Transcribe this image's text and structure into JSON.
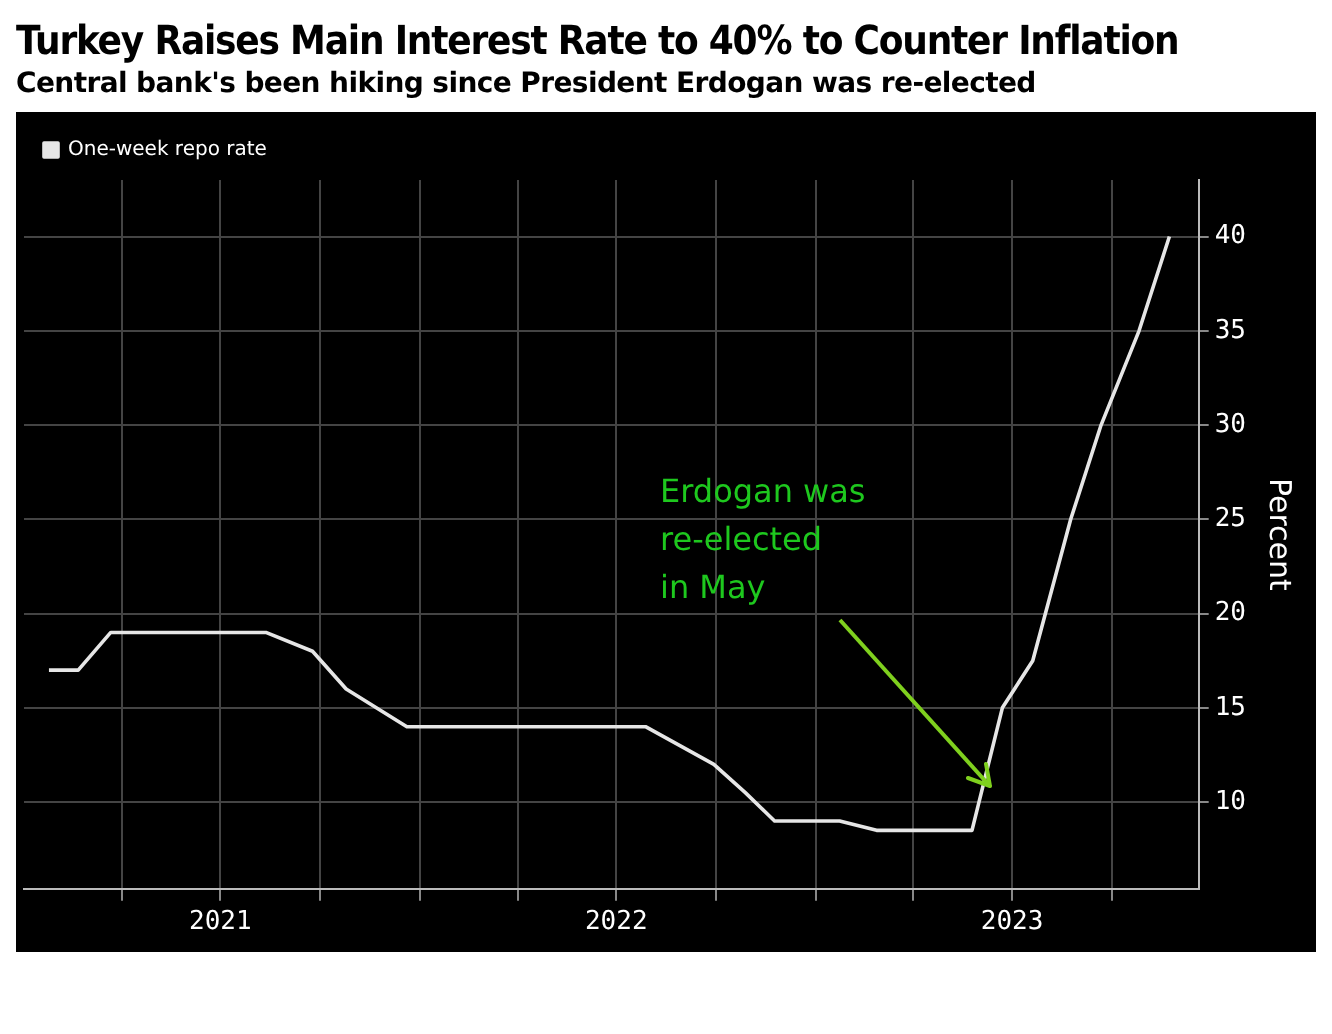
{
  "chart_data": {
    "type": "line",
    "title": "Turkey Raises Main Interest Rate to 40% to Counter Inflation",
    "subtitle": "Central bank's been hiking since President Erdogan was re-elected",
    "ylabel": "Percent",
    "x": [
      "2021-01-24",
      "2021-02-20",
      "2021-03-22",
      "2021-08-12",
      "2021-09-24",
      "2021-10-25",
      "2021-12-20",
      "2022-07-28",
      "2022-09-29",
      "2022-10-28",
      "2022-11-24",
      "2023-01-23",
      "2023-02-26",
      "2023-05-25",
      "2023-06-22",
      "2023-07-20",
      "2023-08-24",
      "2023-09-21",
      "2023-10-26",
      "2023-11-23"
    ],
    "series": [
      {
        "name": "One-week repo rate",
        "color": "#e6e6e6",
        "values": [
          17,
          17,
          19,
          19,
          18,
          16,
          14,
          14,
          12,
          10.5,
          9,
          9,
          8.5,
          8.5,
          15,
          17.5,
          25,
          30,
          35,
          40
        ]
      }
    ],
    "xlim": [
      "2021-01-01",
      "2023-12-20"
    ],
    "xticks": [
      {
        "value": "2021-04-01",
        "label": null
      },
      {
        "value": "2021-07-01",
        "label": "2021"
      },
      {
        "value": "2021-10-01",
        "label": null
      },
      {
        "value": "2022-01-01",
        "label": null
      },
      {
        "value": "2022-04-01",
        "label": null
      },
      {
        "value": "2022-07-01",
        "label": "2022"
      },
      {
        "value": "2022-10-01",
        "label": null
      },
      {
        "value": "2023-01-01",
        "label": null
      },
      {
        "value": "2023-04-01",
        "label": null
      },
      {
        "value": "2023-07-01",
        "label": "2023"
      },
      {
        "value": "2023-10-01",
        "label": null
      }
    ],
    "ylim": [
      5.4,
      43
    ],
    "yticks": [
      10,
      15,
      20,
      25,
      30,
      35,
      40
    ],
    "annotations": [
      "Erdogan was\nre-elected\nin May"
    ],
    "grid": true,
    "legend": "top left",
    "marker": "none",
    "line_style": "solid"
  }
}
